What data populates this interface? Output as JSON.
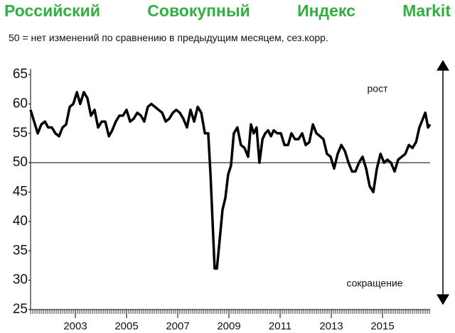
{
  "chart_data": {
    "type": "line",
    "title": "Российский Совокупный Индекс Markit",
    "subtitle": "50 = нет изменений по сравнению в предыдущим месяцем, сез.корр.",
    "annotations": [
      "рост",
      "сокращение"
    ],
    "reference_line": 50,
    "x": [
      2001.25,
      2001.39,
      2001.53,
      2001.67,
      2001.81,
      2001.94,
      2002.08,
      2002.22,
      2002.36,
      2002.5,
      2002.64,
      2002.78,
      2002.92,
      2003.06,
      2003.19,
      2003.33,
      2003.47,
      2003.61,
      2003.75,
      2003.89,
      2004.03,
      2004.17,
      2004.31,
      2004.44,
      2004.58,
      2004.72,
      2004.86,
      2005.0,
      2005.14,
      2005.28,
      2005.42,
      2005.56,
      2005.69,
      2005.83,
      2005.97,
      2006.11,
      2006.25,
      2006.39,
      2006.53,
      2006.67,
      2006.81,
      2006.94,
      2007.08,
      2007.22,
      2007.36,
      2007.5,
      2007.64,
      2007.78,
      2007.92,
      2008.06,
      2008.19,
      2008.28,
      2008.36,
      2008.44,
      2008.53,
      2008.64,
      2008.75,
      2008.86,
      2008.97,
      2009.08,
      2009.19,
      2009.33,
      2009.47,
      2009.61,
      2009.75,
      2009.86,
      2009.97,
      2010.08,
      2010.19,
      2010.31,
      2010.42,
      2010.53,
      2010.64,
      2010.75,
      2010.89,
      2011.03,
      2011.17,
      2011.31,
      2011.44,
      2011.58,
      2011.72,
      2011.86,
      2012.0,
      2012.14,
      2012.28,
      2012.42,
      2012.56,
      2012.69,
      2012.83,
      2012.97,
      2013.11,
      2013.25,
      2013.39,
      2013.53,
      2013.67,
      2013.81,
      2013.94,
      2014.08,
      2014.22,
      2014.36,
      2014.5,
      2014.64,
      2014.78,
      2014.92,
      2015.06,
      2015.19,
      2015.33,
      2015.47,
      2015.61,
      2015.75,
      2015.89,
      2016.03,
      2016.17,
      2016.31,
      2016.44,
      2016.58,
      2016.67,
      2016.78,
      2016.86
    ],
    "series": [
      {
        "color": "#000000",
        "values": [
          59,
          57,
          55,
          56.5,
          57,
          56,
          56,
          55,
          54.5,
          56,
          56.5,
          59.5,
          60,
          62,
          60,
          62,
          61,
          58,
          59,
          56,
          57,
          57,
          54.5,
          55.5,
          57,
          58,
          58,
          59,
          57,
          57.5,
          58.5,
          58,
          57,
          59.5,
          60,
          59.5,
          59,
          58.5,
          57,
          57.5,
          58.5,
          59,
          58.5,
          57.5,
          56,
          59,
          57,
          59.5,
          58.5,
          55,
          55,
          48,
          40,
          32,
          32,
          37,
          42,
          44,
          48,
          49.5,
          55,
          56,
          53,
          52.5,
          51,
          56.5,
          55,
          56,
          50,
          54,
          55,
          55.5,
          54.5,
          55.5,
          55,
          55,
          53,
          53,
          55,
          54,
          54,
          55,
          53,
          53.5,
          56.5,
          55,
          54.5,
          54,
          51.5,
          51,
          49,
          51.5,
          53,
          52,
          50,
          48.5,
          48.5,
          50,
          51,
          49,
          46,
          45,
          49,
          51.5,
          50,
          50.5,
          50,
          48.5,
          50.5,
          51,
          51.5,
          53,
          52.5,
          53.5,
          56,
          57.5,
          58.5,
          56,
          56.5
        ]
      }
    ],
    "xlim": [
      2001.25,
      2016.86
    ],
    "xticks": [
      2003,
      2005,
      2007,
      2009,
      2011,
      2013,
      2015
    ],
    "ylim": [
      25,
      65
    ],
    "yticks": [
      25,
      30,
      35,
      40,
      45,
      50,
      55,
      60,
      65
    ]
  }
}
